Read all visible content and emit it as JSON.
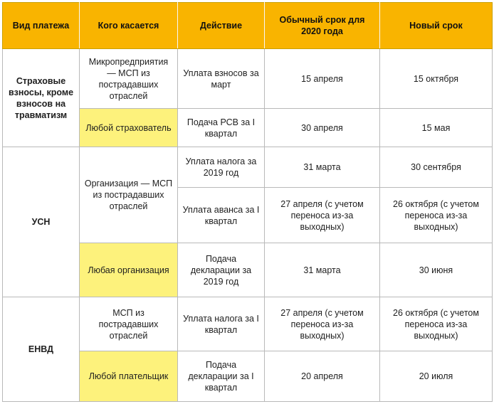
{
  "colors": {
    "header_bg": "#f9b400",
    "highlight": "#fdf27c",
    "border": "#b9b9b9",
    "text": "#1e1e1e"
  },
  "table": {
    "headers": {
      "payment_type": "Вид платежа",
      "who": "Кого касается",
      "action": "Действие",
      "usual_term": "Обычный срок для 2020 года",
      "new_term": "Новый срок"
    },
    "groups": {
      "insurance": "Страховые взносы, кроме взносов на травматизм",
      "usn": "УСН",
      "envd": "ЕНВД"
    },
    "rows": [
      {
        "who": "Микропредприятия — МСП из пострадавших отраслей",
        "action": "Уплата взносов за март",
        "usual": "15 апреля",
        "new": "15 октября"
      },
      {
        "who": "Любой страхователь",
        "action": "Подача РСВ за I квартал",
        "usual": "30 апреля",
        "new": "15 мая"
      },
      {
        "who": "Организация — МСП из пострадавших отраслей",
        "action": "Уплата налога за 2019 год",
        "usual": "31 марта",
        "new": "30 сентября"
      },
      {
        "action": "Уплата аванса за I квартал",
        "usual": "27 апреля (с учетом переноса из-за выходных)",
        "new": "26 октября (с учетом переноса из-за выходных)"
      },
      {
        "who": "Любая организация",
        "action": "Подача декларации за 2019 год",
        "usual": "31 марта",
        "new": "30 июня"
      },
      {
        "who": "МСП из пострадавших отраслей",
        "action": "Уплата налога за I квартал",
        "usual": "27 апреля (с учетом переноса из-за выходных)",
        "new": "26 октября (с учетом переноса из-за выходных)"
      },
      {
        "who": "Любой плательщик",
        "action": "Подача декларации за I квартал",
        "usual": "20 апреля",
        "new": "20 июля"
      }
    ]
  }
}
